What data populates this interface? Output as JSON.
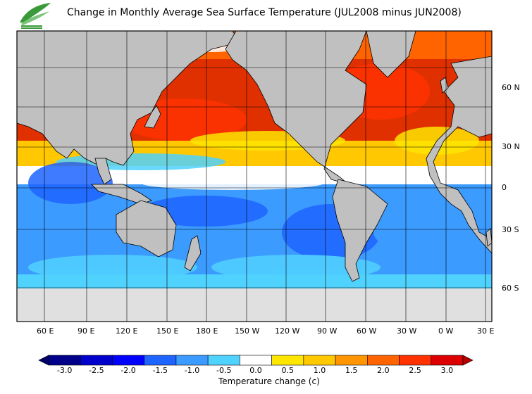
{
  "title": "Change in Monthly Average Sea Surface Temperature (JUL2008 minus JUN2008)",
  "logo": {
    "icon": "leaf-logo-icon",
    "color": "#3a9a3a"
  },
  "map": {
    "frame_color": "#000000",
    "land_color": "#c0c0c0",
    "ice_color": "#e0e0e0",
    "lon_labels": [
      "60 E",
      "90 E",
      "120 E",
      "150 E",
      "180 E",
      "150 W",
      "120 W",
      "90 W",
      "60 W",
      "30 W",
      "0 W",
      "30 E"
    ],
    "lat_labels": [
      "60 N",
      "30 N",
      "0",
      "30 S",
      "60 S"
    ]
  },
  "colorbar": {
    "title": "Temperature change  (c)",
    "labels": [
      "-3.0",
      "-2.5",
      "-2.0",
      "-1.5",
      "-1.0",
      "-0.5",
      "0.0",
      "0.5",
      "1.0",
      "1.5",
      "2.0",
      "2.5",
      "3.0"
    ],
    "colors": [
      "#00008b",
      "#0000cd",
      "#0000ff",
      "#1e64ff",
      "#3c9bff",
      "#50d2ff",
      "#ffffff",
      "#ffe600",
      "#ffc800",
      "#ff9600",
      "#ff6400",
      "#ff3200",
      "#dc0000"
    ],
    "under_color": "#000066",
    "over_color": "#b40000"
  }
}
